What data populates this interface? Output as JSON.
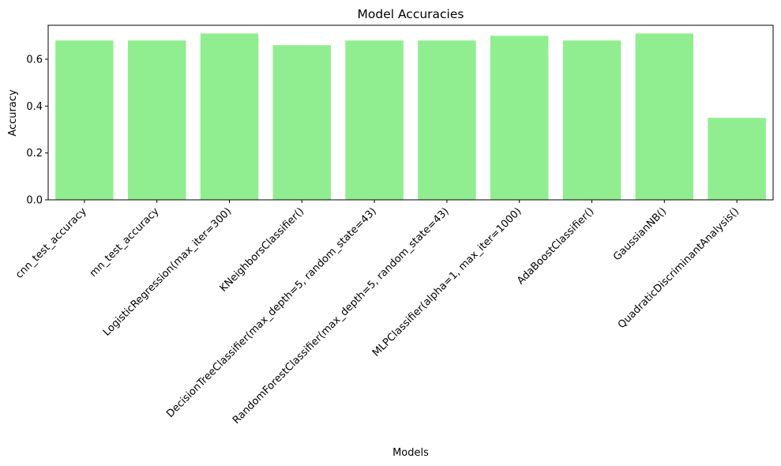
{
  "chart_data": {
    "type": "bar",
    "title": "Model Accuracies",
    "xlabel": "Models",
    "ylabel": "Accuracy",
    "categories": [
      "cnn_test_accuracy",
      "mn_test_accuracy",
      "LogisticRegression(max_iter=300)",
      "KNeighborsClassifier()",
      "DecisionTreeClassifier(max_depth=5, random_state=43)",
      "RandomForestClassifier(max_depth=5, random_state=43)",
      "MLPClassifier(alpha=1, max_iter=1000)",
      "AdaBoostClassifier()",
      "GaussianNB()",
      "QuadraticDiscriminantAnalysis()"
    ],
    "values": [
      0.68,
      0.68,
      0.71,
      0.66,
      0.68,
      0.68,
      0.7,
      0.68,
      0.71,
      0.35
    ],
    "ylim": [
      0,
      0.745
    ],
    "yticks": [
      0.0,
      0.2,
      0.4,
      0.6
    ],
    "ytick_labels": [
      "0.0",
      "0.2",
      "0.4",
      "0.6"
    ],
    "bar_color": "#90ee90",
    "grid": false,
    "legend": "none"
  }
}
